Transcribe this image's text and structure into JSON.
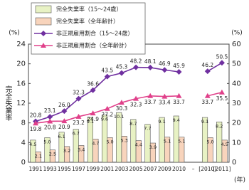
{
  "chart_data": {
    "type": "bar",
    "y_label": "完全失業率",
    "y_unit": "(%)",
    "y2_unit": "(%)",
    "x_unit": "(年)",
    "categories": [
      "1991",
      "1993",
      "1995",
      "1997",
      "1999",
      "2001",
      "2003",
      "2005",
      "2007",
      "2009",
      "2010",
      "–",
      "[2010]",
      "[2011]"
    ],
    "ylim": [
      0,
      24
    ],
    "yticks": [
      0,
      4,
      8,
      12,
      16,
      20,
      24
    ],
    "y2lim": [
      0,
      60
    ],
    "y2ticks": [
      0,
      10,
      20,
      30,
      40,
      50,
      60
    ],
    "series": [
      {
        "name": "完全失業率（15～24歳）",
        "type": "bar",
        "color": "#e8f2c4",
        "values": [
          4.5,
          5.0,
          6.1,
          6.7,
          9.1,
          9.6,
          10.1,
          8.7,
          7.7,
          9.1,
          9.4,
          null,
          9.1,
          8.2
        ],
        "value_labels": [
          "4.5",
          "5.0",
          "6.1",
          "6.7",
          "9.1",
          "9.6",
          "10.1",
          "8.7",
          "7.7",
          "9.1",
          "9.4",
          null,
          "9.1",
          "8.2"
        ]
      },
      {
        "name": "完全失業率（全年齢計）",
        "type": "bar",
        "color": "#f8d4bc",
        "values": [
          2.1,
          2.5,
          3.2,
          3.4,
          4.7,
          5.0,
          5.3,
          4.4,
          3.9,
          5.1,
          5.1,
          null,
          5.0,
          4.5
        ],
        "value_labels": [
          "2.1",
          "2.5",
          "3.2",
          "3.4",
          "4.7",
          "5.0",
          "5.3",
          "4.4",
          "3.9",
          "5.1",
          "5.1",
          null,
          "5.0",
          "4.5"
        ]
      },
      {
        "name": "非正規雇用割合（15～24歳）",
        "type": "line",
        "marker": "diamond",
        "axis": "y2",
        "color": "#7030a0",
        "values": [
          20.8,
          23.1,
          26.0,
          32.3,
          36.6,
          43.5,
          45.3,
          48.2,
          48.1,
          46.9,
          45.9,
          null,
          46.2,
          50.5
        ],
        "value_labels": [
          "20.8",
          "23.1",
          "26.0",
          "32.3",
          "36.6",
          "43.5",
          "45.3",
          "48.2",
          "48.1",
          "46.9",
          "45.9",
          null,
          "46.2",
          "50.5"
        ]
      },
      {
        "name": "非正規雇用割合（全年齢計）",
        "type": "line",
        "marker": "triangle",
        "axis": "y2",
        "color": "#e0408a",
        "values": [
          19.8,
          20.8,
          20.9,
          23.2,
          24.9,
          27.2,
          30.3,
          32.3,
          33.7,
          33.4,
          33.7,
          null,
          33.7,
          35.5
        ],
        "value_labels": [
          "19.8",
          "20.8",
          "20.9",
          "23.2",
          "24.9",
          "27.2",
          "30.3",
          "32.3",
          "33.7",
          "33.4",
          "33.7",
          null,
          "33.7",
          "35.5"
        ]
      }
    ]
  }
}
